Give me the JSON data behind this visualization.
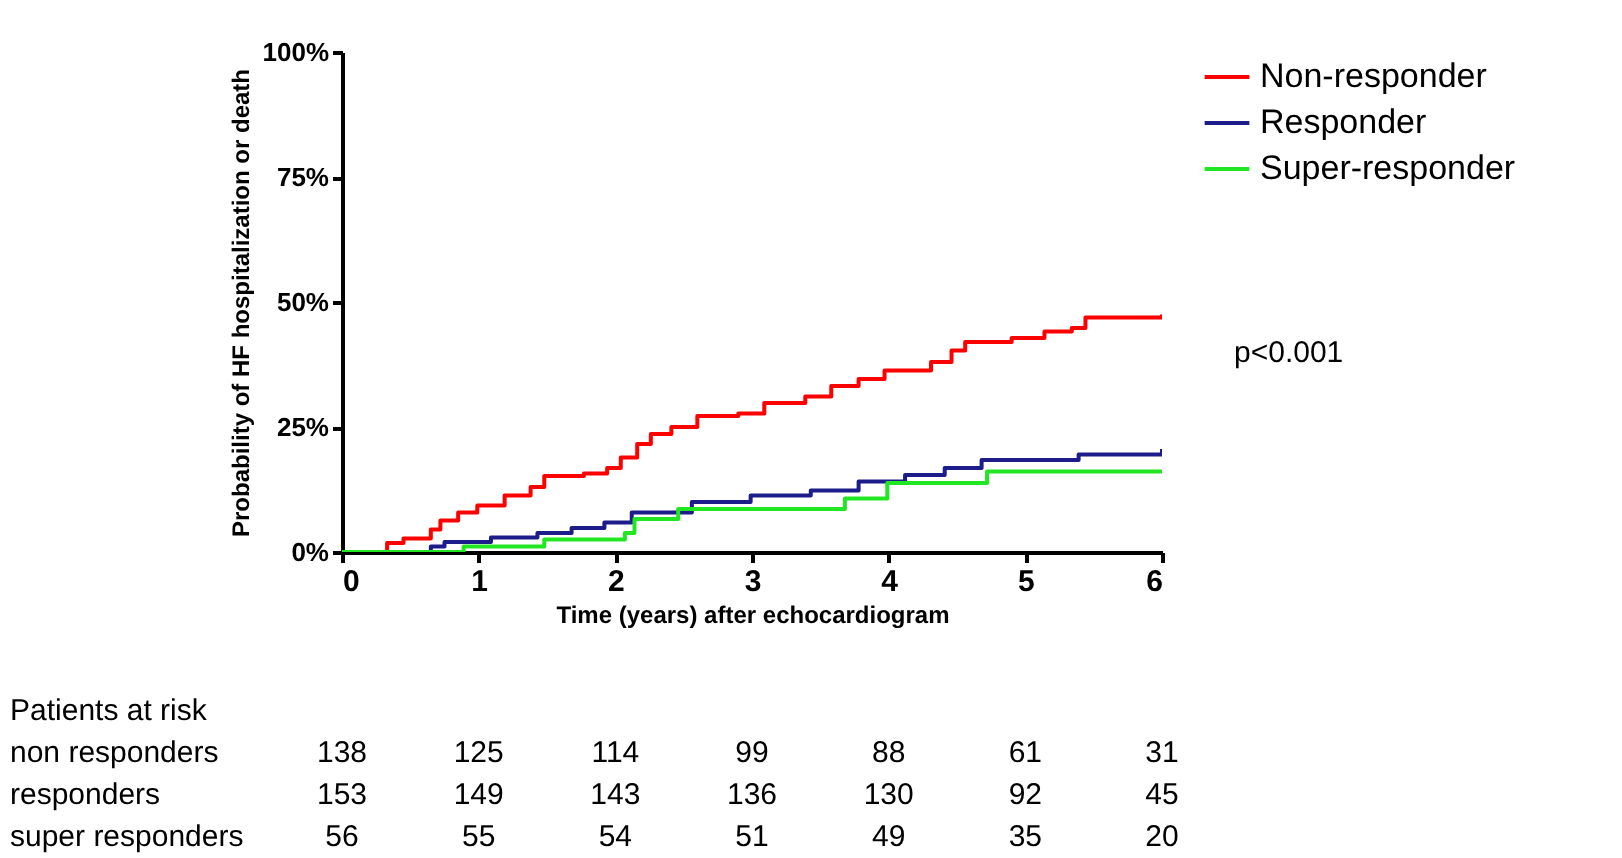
{
  "chart_data": {
    "type": "step",
    "xlabel": "Time (years) after echocardiogram",
    "ylabel": "Probability of HF hospitalization or death",
    "xlim": [
      0,
      6
    ],
    "xticks": [
      0,
      1,
      2,
      3,
      4,
      5,
      6
    ],
    "ylim": [
      0,
      100
    ],
    "yticks": [
      {
        "value": 0,
        "label": "0%"
      },
      {
        "value": 25,
        "label": "25%"
      },
      {
        "value": 50,
        "label": "50%"
      },
      {
        "value": 75,
        "label": "75%"
      },
      {
        "value": 100,
        "label": "100%"
      }
    ],
    "grid": false,
    "legend": "top right",
    "line_style": "solid",
    "marker": "none",
    "series": [
      {
        "name": "Non-responder",
        "color": "#ff0000",
        "x": [
          0,
          0.28,
          0.33,
          0.45,
          0.65,
          0.72,
          0.85,
          0.99,
          1.19,
          1.38,
          1.48,
          1.77,
          1.94,
          2.04,
          2.16,
          2.26,
          2.41,
          2.6,
          2.9,
          3.09,
          3.39,
          3.58,
          3.78,
          3.97,
          4.31,
          4.46,
          4.56,
          4.9,
          5.14,
          5.34,
          5.44,
          6
        ],
        "values": [
          0,
          0,
          1.8,
          2.7,
          4.5,
          6.3,
          7.9,
          9.3,
          11.3,
          13,
          15.2,
          15.7,
          16.8,
          18.9,
          21.6,
          23.6,
          25,
          27.2,
          27.7,
          29.8,
          31.1,
          33.2,
          34.6,
          36.3,
          38,
          40.3,
          42,
          42.8,
          44.1,
          44.8,
          46.9,
          47.5
        ]
      },
      {
        "name": "Responder",
        "color": "#1c1c8a",
        "x": [
          0,
          0.36,
          0.65,
          0.75,
          1.09,
          1.43,
          1.68,
          1.92,
          2.12,
          2.56,
          2.99,
          3.43,
          3.78,
          4.12,
          4.41,
          4.68,
          5.39,
          6
        ],
        "values": [
          0,
          0,
          1.1,
          2,
          2.9,
          3.8,
          4.8,
          5.9,
          7.9,
          10,
          11.3,
          12.3,
          14.1,
          15.4,
          16.8,
          18.4,
          19.5,
          20.6
        ]
      },
      {
        "name": "Super-responder",
        "color": "#22e622",
        "x": [
          0,
          0.65,
          0.89,
          1.48,
          2.07,
          2.14,
          2.46,
          3.68,
          3.99,
          4.72,
          6
        ],
        "values": [
          0,
          0,
          1.1,
          2.5,
          3.8,
          6.6,
          8.6,
          10.7,
          13.8,
          16.1,
          16.1
        ]
      }
    ],
    "annotations": [
      "p<0.001",
      "Patients at risk",
      "non responders 138 125 114 99 88 61 31",
      "responders 153 149 143 136 130 92 45",
      "super responders 56 55 54 51 49 35 20"
    ]
  }
}
